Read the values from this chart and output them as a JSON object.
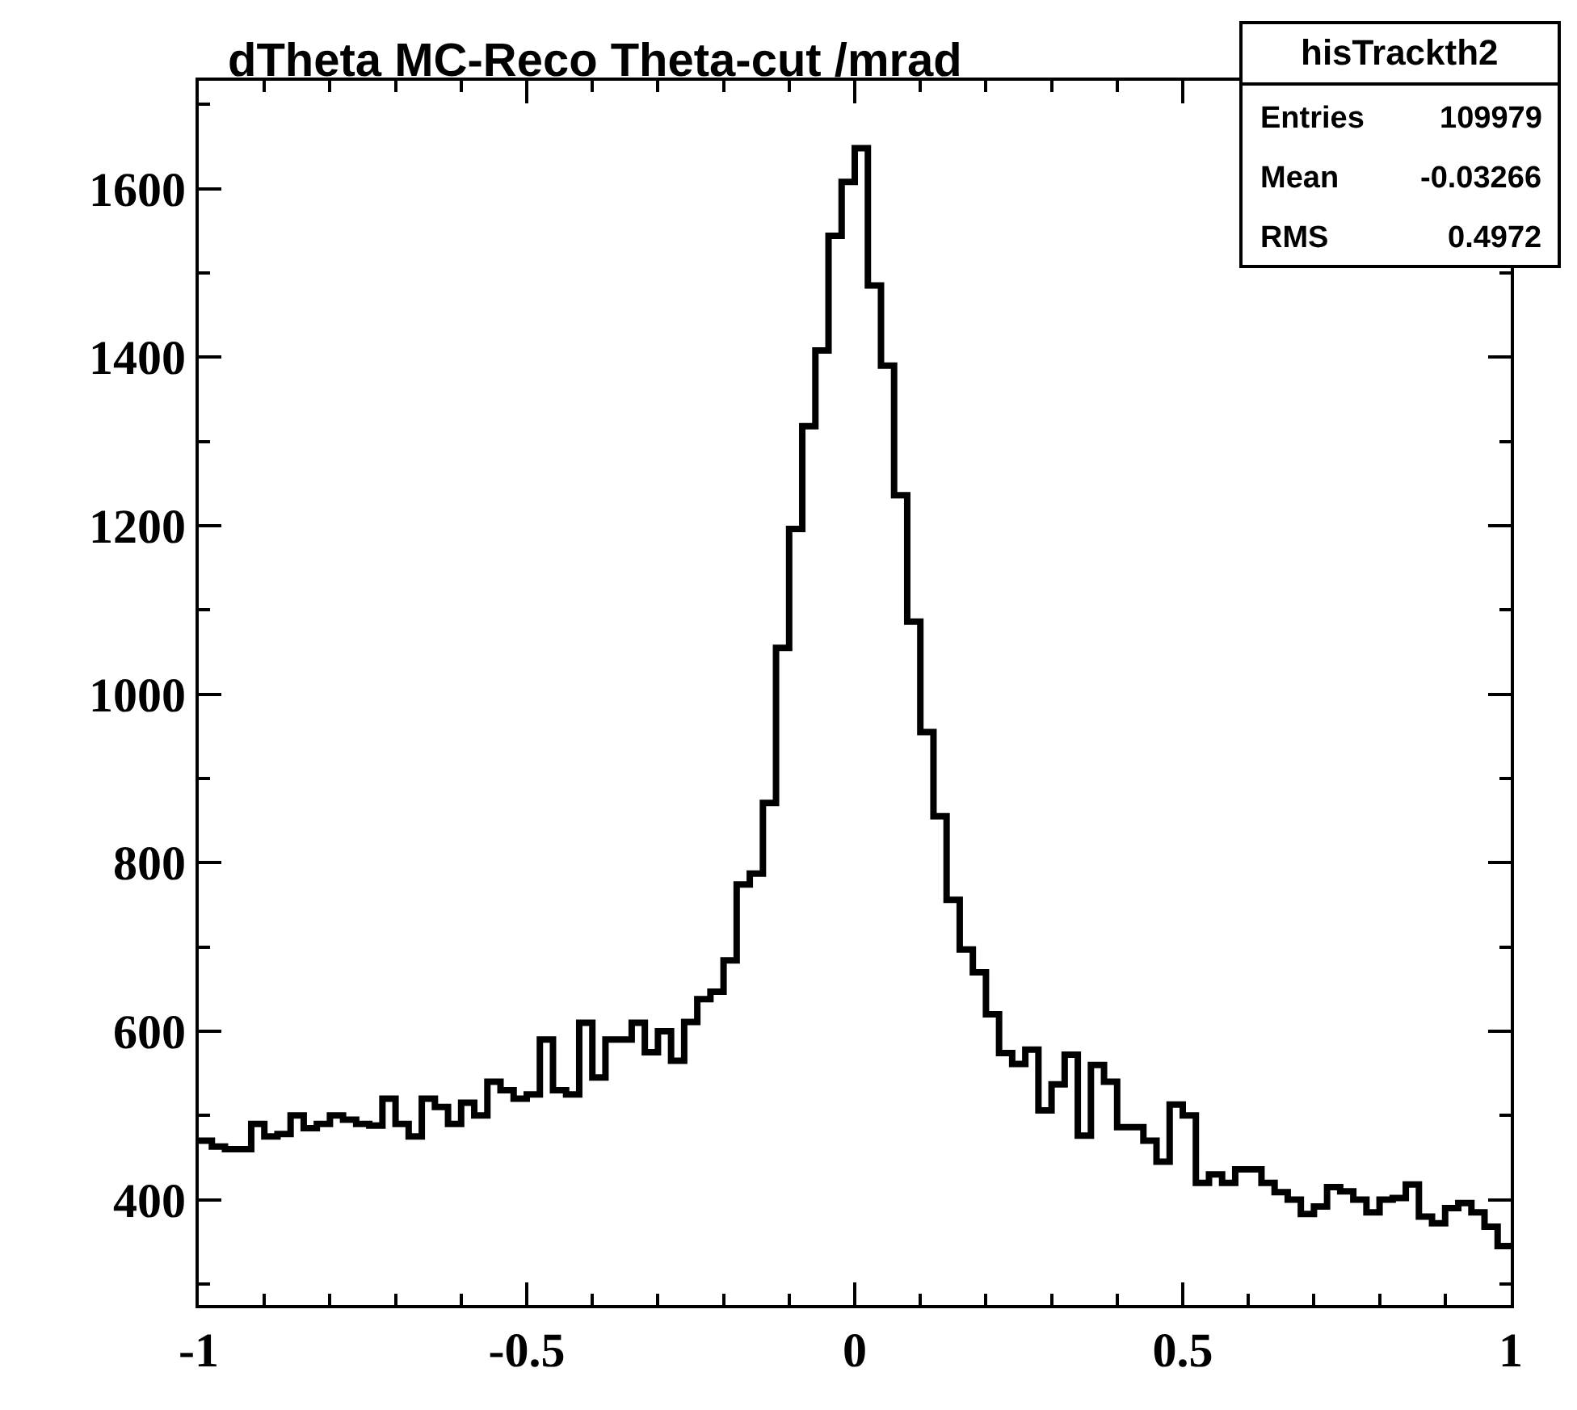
{
  "chart_data": {
    "type": "histogram",
    "title": "dTheta MC-Reco Theta-cut /mrad",
    "bins": [
      -1.0,
      -0.98,
      -0.96,
      -0.94,
      -0.92,
      -0.9,
      -0.88,
      -0.86,
      -0.84,
      -0.82,
      -0.8,
      -0.78,
      -0.76,
      -0.74,
      -0.72,
      -0.7,
      -0.68,
      -0.66,
      -0.64,
      -0.62,
      -0.6,
      -0.58,
      -0.56,
      -0.54,
      -0.52,
      -0.5,
      -0.48,
      -0.46,
      -0.44,
      -0.42,
      -0.4,
      -0.38,
      -0.36,
      -0.34,
      -0.32,
      -0.3,
      -0.28,
      -0.26,
      -0.24,
      -0.22,
      -0.2,
      -0.18,
      -0.16,
      -0.14,
      -0.12,
      -0.1,
      -0.08,
      -0.06,
      -0.04,
      -0.02,
      0.0,
      0.02,
      0.04,
      0.06,
      0.08,
      0.1,
      0.12,
      0.14,
      0.16,
      0.18,
      0.2,
      0.22,
      0.24,
      0.26,
      0.28,
      0.3,
      0.32,
      0.34,
      0.36,
      0.38,
      0.4,
      0.42,
      0.44,
      0.46,
      0.48,
      0.5,
      0.52,
      0.54,
      0.56,
      0.58,
      0.6,
      0.62,
      0.64,
      0.66,
      0.68,
      0.7,
      0.72,
      0.74,
      0.76,
      0.78,
      0.8,
      0.82,
      0.84,
      0.86,
      0.88,
      0.9,
      0.92,
      0.94,
      0.96,
      0.98,
      1.0
    ],
    "values": [
      470,
      463,
      460,
      460,
      490,
      475,
      478,
      500,
      485,
      490,
      500,
      495,
      490,
      488,
      520,
      490,
      475,
      520,
      510,
      490,
      515,
      500,
      540,
      530,
      520,
      525,
      590,
      530,
      525,
      610,
      545,
      590,
      590,
      610,
      575,
      600,
      565,
      611,
      638,
      647,
      684,
      774,
      787,
      871,
      1055,
      1196,
      1318,
      1408,
      1544,
      1608,
      1648,
      1485,
      1390,
      1236,
      1086,
      955,
      855,
      756,
      697,
      670,
      620,
      574,
      561,
      578,
      506,
      537,
      572,
      476,
      560,
      540,
      486,
      486,
      470,
      445,
      513,
      500,
      420,
      430,
      420,
      436,
      436,
      420,
      409,
      400,
      383,
      392,
      415,
      410,
      400,
      385,
      400,
      402,
      418,
      380,
      372,
      390,
      396,
      385,
      368,
      345
    ],
    "color": "#000000",
    "xlim": [
      -1,
      1
    ],
    "xticks": [
      -1,
      -0.5,
      0,
      0.5,
      1
    ],
    "ylim": [
      275,
      1728
    ],
    "yticks": [
      400,
      600,
      800,
      1000,
      1200,
      1400,
      1600
    ],
    "annotations": [
      "hisTrackth2",
      "Entries",
      "109979",
      "Mean",
      "-0.03266",
      "RMS",
      "0.4972"
    ]
  }
}
